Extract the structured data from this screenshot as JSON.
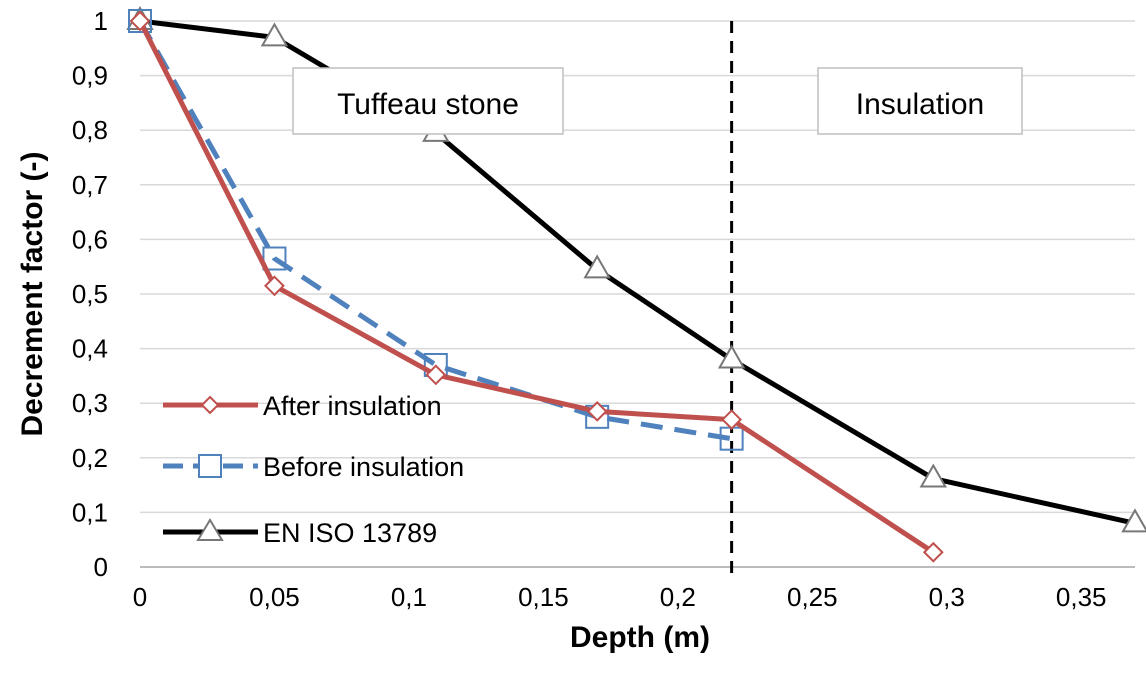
{
  "chart_data": {
    "type": "line",
    "xlabel": "Depth (m)",
    "ylabel": "Decrement factor (-)",
    "xlim": [
      0,
      0.37
    ],
    "ylim": [
      0,
      1
    ],
    "x_ticks": [
      "0",
      "0,05",
      "0,1",
      "0,15",
      "0,2",
      "0,25",
      "0,3",
      "0,35"
    ],
    "x_tick_values": [
      0,
      0.05,
      0.1,
      0.15,
      0.2,
      0.25,
      0.3,
      0.35
    ],
    "y_ticks": [
      "0",
      "0,1",
      "0,2",
      "0,3",
      "0,4",
      "0,5",
      "0,6",
      "0,7",
      "0,8",
      "0,9",
      "1"
    ],
    "y_tick_values": [
      0,
      0.1,
      0.2,
      0.3,
      0.4,
      0.5,
      0.6,
      0.7,
      0.8,
      0.9,
      1
    ],
    "grid": "horizontal",
    "legend_position": "bottom-left",
    "series": [
      {
        "name": "After insulation",
        "color": "#C0504D",
        "marker": "diamond",
        "dash": "solid",
        "x": [
          0,
          0.05,
          0.11,
          0.17,
          0.22,
          0.295
        ],
        "y": [
          1.0,
          0.515,
          0.352,
          0.285,
          0.27,
          0.027
        ]
      },
      {
        "name": "Before insulation",
        "color": "#4F81BD",
        "marker": "square",
        "dash": "dashed",
        "x": [
          0,
          0.05,
          0.11,
          0.17,
          0.22
        ],
        "y": [
          1.0,
          0.565,
          0.37,
          0.275,
          0.235
        ]
      },
      {
        "name": "EN ISO 13789",
        "color": "#000000",
        "marker": "triangle",
        "dash": "solid",
        "x": [
          0,
          0.05,
          0.11,
          0.17,
          0.22,
          0.295,
          0.37
        ],
        "y": [
          1.0,
          0.97,
          0.795,
          0.545,
          0.38,
          0.162,
          0.08
        ]
      }
    ],
    "divider_x": 0.22,
    "region_labels": [
      "Tuffeau stone",
      "Insulation"
    ]
  }
}
